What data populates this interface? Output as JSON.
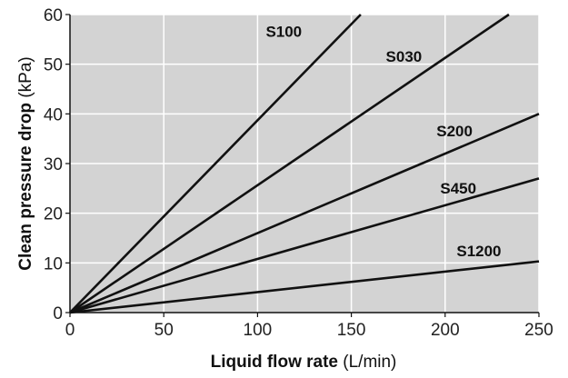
{
  "chart_data": {
    "type": "line",
    "xlabel": {
      "main": "Liquid flow rate",
      "unit": "(L/min)"
    },
    "ylabel": {
      "main": "Clean pressure drop",
      "unit": "(kPa)"
    },
    "xlim": [
      0,
      250
    ],
    "ylim": [
      0,
      60
    ],
    "xticks": [
      "0",
      "50",
      "100",
      "150",
      "200",
      "250"
    ],
    "yticks": [
      "0",
      "10",
      "20",
      "30",
      "40",
      "50",
      "60"
    ],
    "grid": true,
    "plot_background": "#d3d3d3",
    "grid_color": "#ffffff",
    "line_color": "#111111",
    "series": [
      {
        "name": "S100",
        "x": [
          0,
          155
        ],
        "y": [
          0,
          60
        ]
      },
      {
        "name": "S030",
        "x": [
          0,
          234
        ],
        "y": [
          0,
          60
        ]
      },
      {
        "name": "S200",
        "x": [
          0,
          250
        ],
        "y": [
          0,
          40
        ]
      },
      {
        "name": "S450",
        "x": [
          0,
          250
        ],
        "y": [
          0,
          27
        ]
      },
      {
        "name": "S1200",
        "x": [
          0,
          250
        ],
        "y": [
          0,
          10.3
        ]
      }
    ],
    "labels": [
      {
        "text": "S100",
        "x": 114,
        "y": 55.5
      },
      {
        "text": "S030",
        "x": 178,
        "y": 50.5
      },
      {
        "text": "S200",
        "x": 205,
        "y": 35.5
      },
      {
        "text": "S450",
        "x": 207,
        "y": 24
      },
      {
        "text": "S1200",
        "x": 218,
        "y": 11.3
      }
    ]
  }
}
